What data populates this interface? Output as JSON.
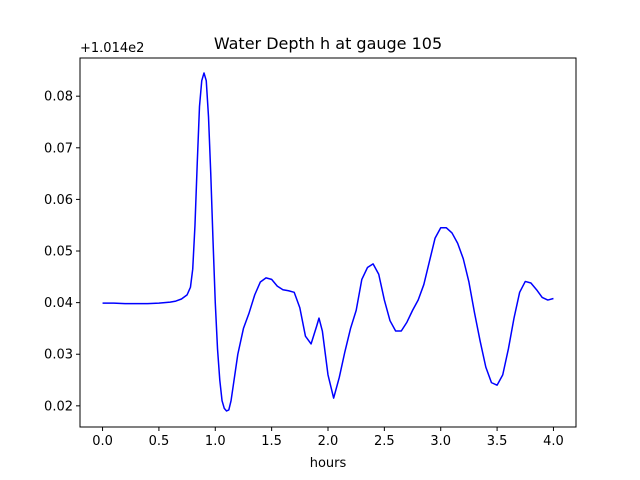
{
  "chart_data": {
    "type": "line",
    "title": "Water Depth h at gauge 105",
    "xlabel": "hours",
    "ylabel": "",
    "y_offset_label": "+1.014e2",
    "xlim": [
      -0.2,
      4.2
    ],
    "ylim": [
      0.0159,
      0.0874
    ],
    "xticks": [
      0.0,
      0.5,
      1.0,
      1.5,
      2.0,
      2.5,
      3.0,
      3.5,
      4.0
    ],
    "xtick_labels": [
      "0.0",
      "0.5",
      "1.0",
      "1.5",
      "2.0",
      "2.5",
      "3.0",
      "3.5",
      "4.0"
    ],
    "yticks": [
      0.02,
      0.03,
      0.04,
      0.05,
      0.06,
      0.07,
      0.08
    ],
    "ytick_labels": [
      "0.02",
      "0.03",
      "0.04",
      "0.05",
      "0.06",
      "0.07",
      "0.08"
    ],
    "grid": false,
    "series": [
      {
        "color": "#0000ff",
        "x": [
          0.0,
          0.1,
          0.2,
          0.3,
          0.4,
          0.5,
          0.55,
          0.6,
          0.65,
          0.7,
          0.75,
          0.78,
          0.8,
          0.82,
          0.84,
          0.86,
          0.88,
          0.9,
          0.92,
          0.94,
          0.96,
          0.98,
          1.0,
          1.02,
          1.04,
          1.06,
          1.08,
          1.1,
          1.12,
          1.14,
          1.16,
          1.18,
          1.2,
          1.25,
          1.3,
          1.35,
          1.4,
          1.45,
          1.5,
          1.55,
          1.6,
          1.65,
          1.7,
          1.75,
          1.8,
          1.85,
          1.9,
          1.92,
          1.95,
          2.0,
          2.05,
          2.1,
          2.15,
          2.2,
          2.25,
          2.3,
          2.35,
          2.4,
          2.45,
          2.5,
          2.55,
          2.6,
          2.65,
          2.7,
          2.75,
          2.8,
          2.85,
          2.9,
          2.95,
          3.0,
          3.05,
          3.1,
          3.15,
          3.2,
          3.25,
          3.3,
          3.35,
          3.4,
          3.45,
          3.5,
          3.55,
          3.6,
          3.65,
          3.7,
          3.75,
          3.8,
          3.85,
          3.9,
          3.95,
          4.0
        ],
        "y": [
          0.0399,
          0.0399,
          0.0398,
          0.0398,
          0.0398,
          0.0399,
          0.04,
          0.0401,
          0.0403,
          0.0407,
          0.0415,
          0.043,
          0.0465,
          0.055,
          0.067,
          0.078,
          0.083,
          0.0845,
          0.083,
          0.076,
          0.065,
          0.052,
          0.04,
          0.031,
          0.025,
          0.021,
          0.0195,
          0.019,
          0.0192,
          0.021,
          0.024,
          0.027,
          0.03,
          0.035,
          0.038,
          0.0415,
          0.044,
          0.0448,
          0.0445,
          0.0432,
          0.0425,
          0.0423,
          0.042,
          0.039,
          0.0335,
          0.032,
          0.0355,
          0.037,
          0.0345,
          0.026,
          0.0215,
          0.0255,
          0.0305,
          0.035,
          0.0385,
          0.0445,
          0.0468,
          0.0475,
          0.0455,
          0.0405,
          0.0365,
          0.0345,
          0.0345,
          0.0362,
          0.0385,
          0.0405,
          0.0435,
          0.048,
          0.0525,
          0.0545,
          0.0545,
          0.0535,
          0.0515,
          0.0485,
          0.044,
          0.038,
          0.0325,
          0.0275,
          0.0245,
          0.024,
          0.026,
          0.031,
          0.037,
          0.042,
          0.0441,
          0.0438,
          0.0425,
          0.041,
          0.0405,
          0.0408
        ]
      }
    ]
  }
}
